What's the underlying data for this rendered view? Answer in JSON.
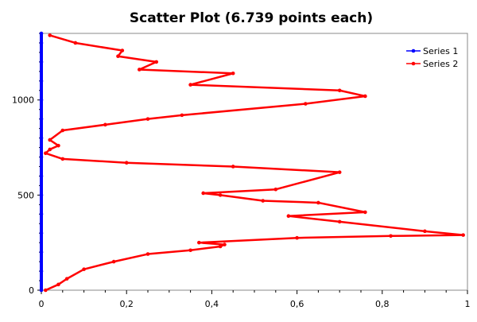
{
  "chart_data": {
    "type": "scatter",
    "title": "Scatter Plot (6.739 points each)",
    "xlabel": "",
    "ylabel": "",
    "xlim": [
      0,
      1
    ],
    "ylim": [
      0,
      1350
    ],
    "x_ticks": [
      {
        "value": 0,
        "label": "0"
      },
      {
        "value": 0.2,
        "label": "0,2"
      },
      {
        "value": 0.4,
        "label": "0,4"
      },
      {
        "value": 0.6,
        "label": "0,6"
      },
      {
        "value": 0.8,
        "label": "0,8"
      },
      {
        "value": 1,
        "label": "1"
      }
    ],
    "y_ticks": [
      {
        "value": 0,
        "label": "0"
      },
      {
        "value": 500,
        "label": "500"
      },
      {
        "value": 1000,
        "label": "1000"
      }
    ],
    "legend_position": "top-right",
    "grid": false,
    "series": [
      {
        "name": "Series 1",
        "color": "#0000ff",
        "x": [
          0,
          0,
          0,
          0,
          0,
          0,
          0,
          0,
          0,
          0,
          0,
          0,
          0,
          0,
          0
        ],
        "y": [
          0,
          100,
          200,
          300,
          400,
          500,
          600,
          700,
          800,
          900,
          1000,
          1100,
          1200,
          1300,
          1350
        ]
      },
      {
        "name": "Series 2",
        "color": "#ff0000",
        "x": [
          0.01,
          0.04,
          0.06,
          0.1,
          0.17,
          0.25,
          0.35,
          0.42,
          0.43,
          0.37,
          0.6,
          0.82,
          0.99,
          0.9,
          0.7,
          0.58,
          0.76,
          0.65,
          0.52,
          0.42,
          0.38,
          0.55,
          0.7,
          0.45,
          0.2,
          0.05,
          0.01,
          0.02,
          0.04,
          0.02,
          0.05,
          0.15,
          0.25,
          0.33,
          0.62,
          0.76,
          0.7,
          0.35,
          0.45,
          0.23,
          0.27,
          0.18,
          0.19,
          0.08,
          0.02
        ],
        "y": [
          0,
          30,
          60,
          110,
          150,
          190,
          210,
          230,
          240,
          250,
          275,
          285,
          290,
          310,
          360,
          390,
          410,
          460,
          470,
          500,
          510,
          530,
          620,
          650,
          670,
          690,
          720,
          740,
          760,
          790,
          840,
          870,
          900,
          920,
          980,
          1020,
          1050,
          1080,
          1140,
          1160,
          1200,
          1230,
          1260,
          1300,
          1340
        ]
      }
    ]
  }
}
